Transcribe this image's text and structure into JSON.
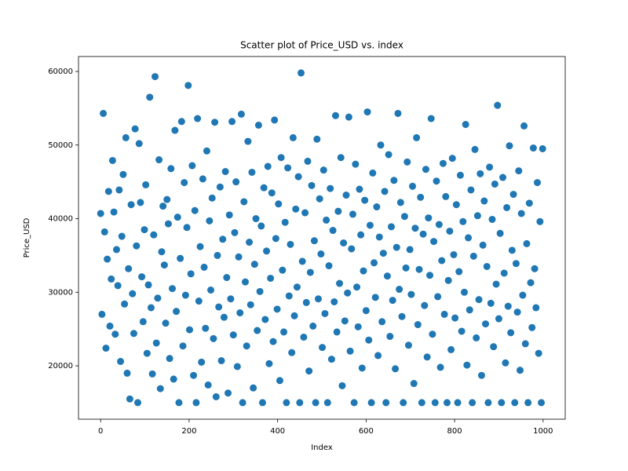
{
  "chart_data": {
    "type": "scatter",
    "title": "Scatter plot of Price_USD vs. index",
    "x_label": "Index",
    "y_label": "Price_USD",
    "color": "#1f77b4",
    "xlim": [
      -50,
      1050
    ],
    "xticks": [
      0,
      200,
      400,
      600,
      800,
      1000
    ],
    "ylim": [
      12750,
      62030
    ],
    "yticks": [
      20000,
      30000,
      40000,
      50000,
      60000
    ],
    "x": [
      0,
      3,
      6,
      9,
      12,
      15,
      18,
      21,
      24,
      27,
      30,
      33,
      36,
      39,
      42,
      45,
      48,
      51,
      54,
      57,
      60,
      63,
      66,
      69,
      72,
      75,
      78,
      81,
      84,
      87,
      90,
      93,
      96,
      99,
      102,
      105,
      108,
      111,
      114,
      117,
      120,
      123,
      126,
      129,
      132,
      135,
      138,
      141,
      144,
      147,
      150,
      153,
      156,
      159,
      162,
      165,
      168,
      171,
      174,
      177,
      180,
      183,
      186,
      189,
      192,
      195,
      198,
      201,
      204,
      207,
      210,
      213,
      216,
      219,
      222,
      225,
      228,
      231,
      234,
      237,
      240,
      243,
      246,
      249,
      252,
      255,
      258,
      261,
      264,
      267,
      270,
      273,
      276,
      279,
      282,
      285,
      288,
      291,
      294,
      297,
      300,
      303,
      306,
      309,
      312,
      315,
      318,
      321,
      324,
      327,
      330,
      333,
      336,
      339,
      342,
      345,
      348,
      351,
      354,
      357,
      360,
      363,
      366,
      369,
      372,
      375,
      378,
      381,
      384,
      387,
      390,
      393,
      396,
      399,
      402,
      405,
      408,
      411,
      414,
      417,
      420,
      423,
      426,
      429,
      432,
      435,
      438,
      441,
      444,
      447,
      450,
      453,
      456,
      459,
      462,
      465,
      468,
      471,
      474,
      477,
      480,
      483,
      486,
      489,
      492,
      495,
      498,
      501,
      504,
      507,
      510,
      513,
      516,
      519,
      522,
      525,
      528,
      531,
      534,
      537,
      540,
      543,
      546,
      549,
      552,
      555,
      558,
      561,
      564,
      567,
      570,
      573,
      576,
      579,
      582,
      585,
      588,
      591,
      594,
      597,
      600,
      603,
      606,
      609,
      612,
      615,
      618,
      621,
      624,
      627,
      630,
      633,
      636,
      639,
      642,
      645,
      648,
      651,
      654,
      657,
      660,
      663,
      666,
      669,
      672,
      675,
      678,
      681,
      684,
      687,
      690,
      693,
      696,
      699,
      702,
      705,
      708,
      711,
      714,
      717,
      720,
      723,
      726,
      729,
      732,
      735,
      738,
      741,
      744,
      747,
      750,
      753,
      756,
      759,
      762,
      765,
      768,
      771,
      774,
      777,
      780,
      783,
      786,
      789,
      792,
      795,
      798,
      801,
      804,
      807,
      810,
      813,
      816,
      819,
      822,
      825,
      828,
      831,
      834,
      837,
      840,
      843,
      846,
      849,
      852,
      855,
      858,
      861,
      864,
      867,
      870,
      873,
      876,
      879,
      882,
      885,
      888,
      891,
      894,
      897,
      900,
      903,
      906,
      909,
      912,
      915,
      918,
      921,
      924,
      927,
      930,
      933,
      936,
      939,
      942,
      945,
      948,
      951,
      954,
      957,
      960,
      963,
      966,
      969,
      972,
      975,
      978,
      981,
      984,
      987,
      990,
      993,
      996,
      999
    ],
    "values": [
      40700,
      27000,
      54300,
      38200,
      22400,
      34500,
      43700,
      25400,
      31800,
      47900,
      40900,
      24300,
      35800,
      30900,
      43900,
      20600,
      37600,
      46000,
      28400,
      51000,
      19000,
      33200,
      15500,
      41900,
      29800,
      24400,
      52200,
      36300,
      15000,
      50200,
      42200,
      32100,
      26000,
      38500,
      44600,
      21700,
      31000,
      56500,
      27900,
      18900,
      37800,
      59300,
      23100,
      29200,
      48000,
      16900,
      35500,
      41700,
      33700,
      25800,
      42600,
      39300,
      21000,
      46800,
      30500,
      18200,
      52000,
      27400,
      40200,
      15000,
      34600,
      53200,
      22700,
      44900,
      29600,
      38800,
      58100,
      24900,
      32500,
      47200,
      18700,
      41100,
      15000,
      53600,
      28800,
      36200,
      20500,
      45400,
      33400,
      25100,
      49200,
      17400,
      39700,
      30300,
      42800,
      23700,
      53100,
      15800,
      35000,
      28000,
      44300,
      20700,
      37200,
      26600,
      46400,
      32000,
      16300,
      40500,
      29100,
      53200,
      24200,
      38100,
      45000,
      19900,
      34800,
      27200,
      54200,
      15000,
      42300,
      31400,
      22700,
      50500,
      36800,
      28300,
      46300,
      17000,
      33800,
      40000,
      24800,
      52700,
      30100,
      39000,
      15000,
      44200,
      26300,
      35600,
      47100,
      20300,
      31900,
      43500,
      23300,
      53400,
      37300,
      27700,
      42000,
      18000,
      48300,
      33000,
      24600,
      39500,
      15000,
      46900,
      29500,
      36500,
      21800,
      51000,
      26800,
      41300,
      30700,
      45700,
      15000,
      59800,
      34200,
      23900,
      40800,
      28600,
      47800,
      19300,
      32700,
      44500,
      25400,
      37000,
      15000,
      50800,
      29100,
      42700,
      35200,
      22500,
      46600,
      27100,
      39800,
      15000,
      33600,
      44100,
      20900,
      38400,
      28700,
      54000,
      24600,
      41000,
      31200,
      48300,
      17300,
      36700,
      26100,
      43200,
      29900,
      53800,
      22000,
      35900,
      40600,
      15000,
      47400,
      30700,
      25300,
      44000,
      37800,
      19700,
      32900,
      42500,
      27500,
      54500,
      23500,
      39100,
      15000,
      46200,
      34000,
      29300,
      41600,
      21400,
      37500,
      50000,
      26000,
      35300,
      43700,
      15000,
      32200,
      48700,
      24000,
      38900,
      28900,
      45200,
      19600,
      36100,
      54300,
      30400,
      42200,
      26700,
      15000,
      40300,
      33300,
      47700,
      22800,
      35800,
      29700,
      44400,
      17600,
      38700,
      51000,
      25600,
      33100,
      42900,
      15000,
      37900,
      28200,
      46700,
      21200,
      40100,
      32300,
      53600,
      24300,
      36900,
      15000,
      45100,
      29400,
      39200,
      19800,
      34300,
      47500,
      27000,
      43000,
      15000,
      31600,
      38300,
      22200,
      48200,
      35100,
      26500,
      41900,
      15000,
      32800,
      45900,
      24700,
      39600,
      30000,
      52800,
      20100,
      37400,
      27600,
      43900,
      15000,
      34900,
      49400,
      23800,
      40400,
      29000,
      46100,
      18700,
      36400,
      42400,
      25700,
      33500,
      15000,
      47000,
      28500,
      39900,
      22600,
      44700,
      31100,
      55400,
      26400,
      38000,
      15000,
      45600,
      32600,
      20400,
      41500,
      28100,
      49900,
      24500,
      35700,
      43300,
      15000,
      33900,
      27300,
      46500,
      19400,
      40700,
      29600,
      52600,
      23000,
      36600,
      15000,
      42100,
      31300,
      25200,
      49600,
      33200,
      27900,
      44900,
      21700,
      39600,
      15000,
      49500
    ]
  }
}
